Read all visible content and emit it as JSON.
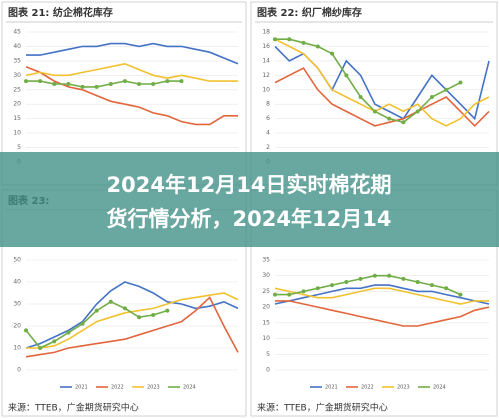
{
  "chart_data": [
    {
      "type": "line",
      "title": "图表 21: 纺企棉花库存",
      "ylim": [
        0,
        45
      ],
      "yticks": [
        0,
        5,
        10,
        15,
        20,
        25,
        30,
        35,
        40,
        45
      ],
      "grid": true,
      "series": [
        {
          "color": "#4472c4",
          "values": [
            37,
            37,
            38,
            39,
            40,
            40,
            41,
            41,
            40,
            41,
            40,
            40,
            39,
            38,
            36,
            34
          ]
        },
        {
          "color": "#e2653c",
          "values": [
            33,
            31,
            28,
            26,
            25,
            23,
            21,
            20,
            19,
            17,
            16,
            14,
            13,
            13,
            16,
            16
          ]
        },
        {
          "color": "#f2c12e",
          "values": [
            30,
            31,
            30,
            30,
            31,
            32,
            33,
            34,
            32,
            30,
            29,
            30,
            29,
            28,
            28,
            28
          ]
        },
        {
          "color": "#70ad47",
          "values": [
            28,
            28,
            27,
            27,
            26,
            26,
            27,
            28,
            27,
            27,
            28,
            28,
            null,
            null,
            null,
            null
          ]
        }
      ]
    },
    {
      "type": "line",
      "title": "图表 22: 织厂棉纱库存",
      "ylim": [
        0,
        18
      ],
      "yticks": [
        0,
        2,
        4,
        6,
        8,
        10,
        12,
        14,
        16,
        18
      ],
      "grid": true,
      "series": [
        {
          "color": "#4472c4",
          "values": [
            16,
            14,
            15,
            13,
            10,
            14,
            12,
            8,
            7,
            6,
            9,
            12,
            10,
            8,
            6,
            14
          ]
        },
        {
          "color": "#e2653c",
          "values": [
            11,
            12,
            13,
            10,
            8,
            7,
            6,
            5,
            5.5,
            6,
            7,
            8,
            9,
            7,
            5,
            7
          ]
        },
        {
          "color": "#f2c12e",
          "values": [
            17,
            16,
            15,
            13,
            10,
            9,
            8,
            7,
            8,
            7,
            8,
            6,
            5,
            6,
            8,
            9
          ]
        },
        {
          "color": "#70ad47",
          "values": [
            17,
            17,
            16.5,
            16,
            15,
            12,
            9,
            7,
            6,
            5.5,
            7,
            9,
            10,
            11,
            null,
            null
          ]
        }
      ]
    },
    {
      "type": "line",
      "title": "图表 23:",
      "source": "来源：TTEB，广金期货研究中心",
      "ylim": [
        0,
        50
      ],
      "yticks": [
        0,
        10,
        20,
        30,
        40,
        50
      ],
      "grid": true,
      "series": [
        {
          "name": "2021",
          "color": "#4472c4",
          "values": [
            10,
            12,
            15,
            18,
            22,
            30,
            36,
            40,
            38,
            35,
            31,
            30,
            28,
            29,
            31,
            28
          ]
        },
        {
          "name": "2022",
          "color": "#e2653c",
          "values": [
            6,
            7,
            8,
            10,
            11,
            12,
            13,
            14,
            16,
            18,
            20,
            22,
            27,
            33,
            20,
            8
          ]
        },
        {
          "name": "2023",
          "color": "#f2c12e",
          "values": [
            10,
            10,
            11,
            14,
            18,
            22,
            24,
            26,
            27,
            28,
            30,
            32,
            33,
            34,
            35,
            32
          ]
        },
        {
          "name": "2024",
          "color": "#70ad47",
          "values": [
            18,
            10,
            13,
            17,
            21,
            27,
            31,
            28,
            24,
            25,
            27,
            null,
            null,
            null,
            null,
            null
          ]
        }
      ]
    },
    {
      "type": "line",
      "source": "来源：TTEB，广金期货研究中心",
      "ylim": [
        0,
        35
      ],
      "yticks": [
        0,
        5,
        10,
        15,
        20,
        25,
        30,
        35
      ],
      "grid": true,
      "series": [
        {
          "name": "2021",
          "color": "#4472c4",
          "values": [
            21,
            22,
            23,
            24,
            25,
            26,
            26,
            27,
            27,
            26,
            25,
            25,
            24,
            23,
            22,
            21
          ]
        },
        {
          "name": "2022",
          "color": "#e2653c",
          "values": [
            22,
            22,
            21,
            20,
            19,
            18,
            17,
            16,
            15,
            14,
            14,
            15,
            16,
            17,
            19,
            20
          ]
        },
        {
          "name": "2023",
          "color": "#f2c12e",
          "values": [
            26,
            25,
            24,
            23,
            23,
            24,
            25,
            26,
            26,
            25,
            24,
            23,
            22,
            21,
            22,
            22
          ]
        },
        {
          "name": "2024",
          "color": "#70ad47",
          "values": [
            24,
            24,
            25,
            26,
            27,
            28,
            29,
            30,
            30,
            29,
            28,
            27,
            26,
            24,
            null,
            null
          ]
        }
      ]
    }
  ],
  "overlay": {
    "lines": [
      "2024年12月14日实时棉花期",
      "货行情分析，2024年12月14"
    ]
  }
}
